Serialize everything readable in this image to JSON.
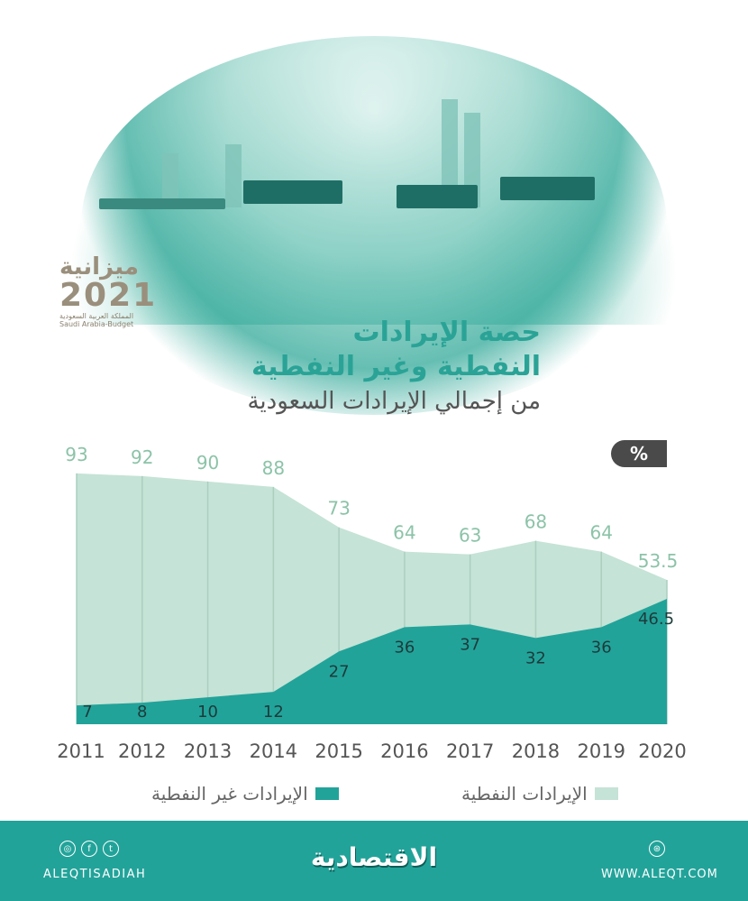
{
  "logo": {
    "arabic": "ميزانية",
    "year": "2021",
    "kingdom": "المملكة العربية السعودية",
    "english": "Saudi Arabia-Budget"
  },
  "header": {
    "title_line1": "حصة الإيرادات",
    "title_line2": "النفطية وغير النفطية",
    "subtitle": "من إجمالي الإيرادات السعودية"
  },
  "unit_badge": "%",
  "chart_data": {
    "type": "area",
    "categories": [
      "2011",
      "2012",
      "2013",
      "2014",
      "2015",
      "2016",
      "2017",
      "2018",
      "2019",
      "2020"
    ],
    "series": [
      {
        "name": "الإيرادات النفطية",
        "values": [
          93,
          92,
          90,
          88,
          73,
          64,
          63,
          68,
          64,
          53.5
        ],
        "color": "#c5e3d6"
      },
      {
        "name": "الإيرادات غير النفطية",
        "values": [
          7,
          8,
          10,
          12,
          27,
          36,
          37,
          32,
          36,
          46.5
        ],
        "color": "#22a39a"
      }
    ],
    "unit": "%",
    "ylim": [
      0,
      100
    ],
    "grid": false,
    "legend": "bottom"
  },
  "footer": {
    "brand": "الاقتصادية",
    "handle": "ALEQTISADIAH",
    "website": "WWW.ALEQT.COM",
    "icons": [
      "instagram-icon",
      "facebook-icon",
      "twitter-icon",
      "globe-icon"
    ]
  }
}
